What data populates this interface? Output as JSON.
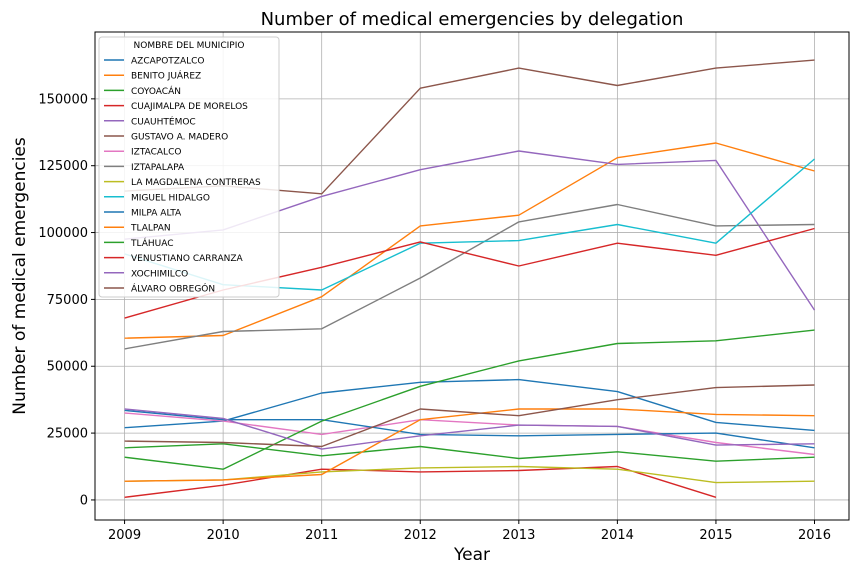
{
  "chart_data": {
    "type": "line",
    "title": "Number of medical emergencies by delegation",
    "xlabel": "Year",
    "ylabel": "Number of medical emergencies",
    "x": [
      2009,
      2010,
      2011,
      2012,
      2013,
      2014,
      2015,
      2016
    ],
    "xlim": [
      2008.7,
      2016.35
    ],
    "ylim": [
      -7500,
      175000
    ],
    "yticks": [
      0,
      25000,
      50000,
      75000,
      100000,
      125000,
      150000
    ],
    "grid": true,
    "legend_title": "NOMBRE DEL MUNICIPIO",
    "legend_position": "top-left",
    "series": [
      {
        "name": "AZCAPOTZALCO",
        "color": "#1f77b4",
        "values": [
          27000,
          29500,
          40000,
          44000,
          45000,
          40500,
          29000,
          26000
        ]
      },
      {
        "name": "BENITO JUÁREZ",
        "color": "#ff7f0e",
        "values": [
          60500,
          61500,
          76000,
          102500,
          106500,
          128000,
          133500,
          123000
        ]
      },
      {
        "name": "COYOACÁN",
        "color": "#2ca02c",
        "values": [
          19500,
          21000,
          16500,
          20000,
          15500,
          18000,
          14500,
          16000
        ]
      },
      {
        "name": "CUAJIMALPA DE MORELOS",
        "color": "#d62728",
        "values": [
          1000,
          5500,
          11500,
          10500,
          11000,
          12500,
          1000,
          null
        ]
      },
      {
        "name": "CUAUHTÉMOC",
        "color": "#9467bd",
        "values": [
          97500,
          101000,
          113500,
          123500,
          130500,
          125500,
          127000,
          71000
        ]
      },
      {
        "name": "GUSTAVO A. MADERO",
        "color": "#8c564b",
        "values": [
          115500,
          117500,
          114500,
          154000,
          161500,
          155000,
          161500,
          164500
        ]
      },
      {
        "name": "IZTACALCO",
        "color": "#e377c2",
        "values": [
          32500,
          29500,
          24500,
          30000,
          28000,
          27500,
          21500,
          17000
        ]
      },
      {
        "name": "IZTAPALAPA",
        "color": "#7f7f7f",
        "values": [
          56500,
          63000,
          64000,
          83000,
          104000,
          110500,
          102500,
          103000
        ]
      },
      {
        "name": "LA MAGDALENA CONTRERAS",
        "color": "#bcbd22",
        "values": [
          7000,
          7500,
          10500,
          12000,
          12500,
          11500,
          6500,
          7000
        ]
      },
      {
        "name": "MIGUEL HIDALGO",
        "color": "#17becf",
        "values": [
          92000,
          80500,
          78500,
          96000,
          97000,
          103000,
          96000,
          127500
        ]
      },
      {
        "name": "MILPA ALTA",
        "color": "#1f77b4",
        "values": [
          33500,
          30000,
          30000,
          24500,
          24000,
          24500,
          25000,
          19500
        ]
      },
      {
        "name": "TLALPAN",
        "color": "#ff7f0e",
        "values": [
          7000,
          7500,
          9500,
          30000,
          34000,
          34000,
          32000,
          31500
        ]
      },
      {
        "name": "TLÁHUAC",
        "color": "#2ca02c",
        "values": [
          16000,
          11500,
          29500,
          42500,
          52000,
          58500,
          59500,
          63500
        ]
      },
      {
        "name": "VENUSTIANO CARRANZA",
        "color": "#d62728",
        "values": [
          68000,
          78500,
          87000,
          96500,
          87500,
          96000,
          91500,
          101500
        ]
      },
      {
        "name": "XOCHIMILCO",
        "color": "#9467bd",
        "values": [
          34000,
          30500,
          19000,
          24000,
          28000,
          27500,
          20500,
          21000
        ]
      },
      {
        "name": "ÁLVARO OBREGÓN",
        "color": "#8c564b",
        "values": [
          22000,
          21500,
          20000,
          34000,
          31500,
          37500,
          42000,
          43000
        ]
      }
    ]
  }
}
